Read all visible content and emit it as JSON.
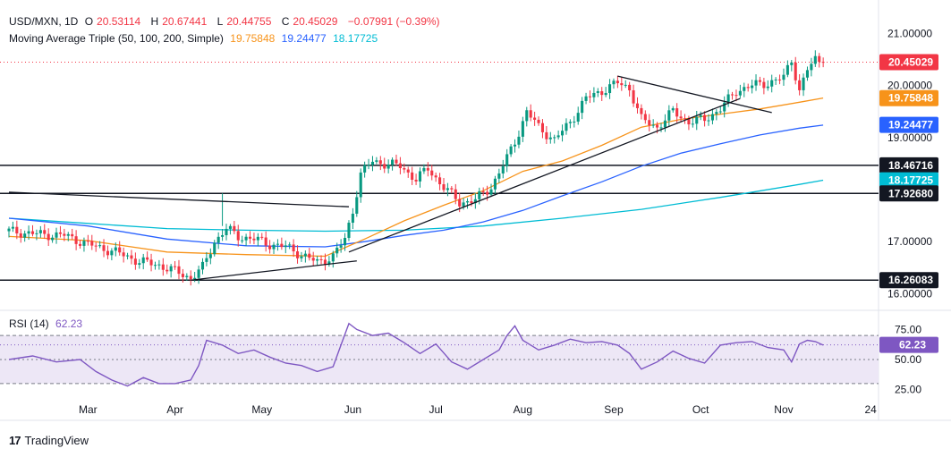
{
  "header": {
    "symbol": "USD/MXN, 1D",
    "o_label": "O",
    "o_value": "20.53114",
    "h_label": "H",
    "h_value": "20.67441",
    "l_label": "L",
    "l_value": "20.44755",
    "c_label": "C",
    "c_value": "20.45029",
    "change": "−0.07991 (−0.39%)",
    "ma_title": "Moving Average Triple (50, 100, 200, Simple)",
    "ma50_value": "19.75848",
    "ma100_value": "19.24477",
    "ma200_value": "18.17725",
    "rsi_title": "RSI (14)",
    "rsi_value": "62.23"
  },
  "colors": {
    "up": "#089981",
    "down": "#f23645",
    "ma50": "#f7931a",
    "ma100": "#2962ff",
    "ma200": "#00bcd4",
    "rsi": "#7e57c2",
    "rsi_band": "#ede7f6"
  },
  "brand": {
    "name": "TradingView",
    "logo": "17"
  },
  "chart_data": {
    "type": "candlestick",
    "price_axis": {
      "ticks": [
        "21.00000",
        "20.00000",
        "19.00000",
        "17.00000",
        "16.00000"
      ],
      "tick_values": [
        21,
        20,
        19,
        17,
        16
      ],
      "range": [
        15.8,
        21.3
      ]
    },
    "time_axis": {
      "labels": [
        "Mar",
        "Apr",
        "May",
        "Jun",
        "Jul",
        "Aug",
        "Sep",
        "Oct",
        "Nov",
        "24"
      ],
      "label_day_index": [
        20,
        42,
        64,
        87,
        108,
        130,
        153,
        175,
        196,
        218
      ],
      "range": [
        0,
        220
      ]
    },
    "price_tags": [
      {
        "label": "20.45029",
        "value": 20.45029,
        "color": "#f23645"
      },
      {
        "label": "19.75848",
        "value": 19.75848,
        "color": "#f7931a"
      },
      {
        "label": "19.24477",
        "value": 19.24477,
        "color": "#2962ff"
      },
      {
        "label": "18.46716",
        "value": 18.46716,
        "color": "#131722"
      },
      {
        "label": "18.17725",
        "value": 18.17725,
        "color": "#00bcd4"
      },
      {
        "label": "17.92680",
        "value": 17.9268,
        "color": "#131722"
      },
      {
        "label": "16.26083",
        "value": 16.26083,
        "color": "#131722"
      }
    ],
    "horizontal_levels": [
      18.46716,
      17.9268,
      16.26083
    ],
    "last_close": 20.45029,
    "trendlines": [
      {
        "from": [
          0,
          17.95
        ],
        "to": [
          86,
          17.67
        ]
      },
      {
        "from": [
          46,
          16.26
        ],
        "to": [
          88,
          16.63
        ]
      },
      {
        "from": [
          86,
          16.8
        ],
        "to": [
          185,
          19.75
        ]
      },
      {
        "from": [
          154,
          20.18
        ],
        "to": [
          193,
          19.48
        ]
      }
    ],
    "price_path": [
      [
        0,
        17.2
      ],
      [
        8,
        17.14
      ],
      [
        14,
        17.12
      ],
      [
        20,
        16.95
      ],
      [
        27,
        16.8
      ],
      [
        33,
        16.62
      ],
      [
        38,
        16.55
      ],
      [
        43,
        16.4
      ],
      [
        46,
        16.3
      ],
      [
        49,
        16.5
      ],
      [
        52,
        17.0
      ],
      [
        55,
        17.25
      ],
      [
        58,
        17.1
      ],
      [
        62,
        17.05
      ],
      [
        66,
        16.95
      ],
      [
        70,
        16.9
      ],
      [
        74,
        16.75
      ],
      [
        78,
        16.6
      ],
      [
        82,
        16.72
      ],
      [
        85,
        17.05
      ],
      [
        87,
        17.6
      ],
      [
        89,
        18.3
      ],
      [
        92,
        18.55
      ],
      [
        95,
        18.5
      ],
      [
        99,
        18.45
      ],
      [
        103,
        18.2
      ],
      [
        106,
        18.4
      ],
      [
        110,
        18.05
      ],
      [
        114,
        17.75
      ],
      [
        118,
        17.8
      ],
      [
        122,
        18.05
      ],
      [
        126,
        18.6
      ],
      [
        129,
        19.1
      ],
      [
        131,
        19.5
      ],
      [
        134,
        19.2
      ],
      [
        138,
        18.95
      ],
      [
        142,
        19.3
      ],
      [
        146,
        19.75
      ],
      [
        150,
        19.9
      ],
      [
        154,
        20.05
      ],
      [
        157,
        19.95
      ],
      [
        160,
        19.35
      ],
      [
        164,
        19.2
      ],
      [
        168,
        19.5
      ],
      [
        172,
        19.3
      ],
      [
        176,
        19.35
      ],
      [
        180,
        19.55
      ],
      [
        184,
        19.9
      ],
      [
        188,
        20.0
      ],
      [
        192,
        20.05
      ],
      [
        196,
        20.15
      ],
      [
        198,
        20.5
      ],
      [
        200,
        19.9
      ],
      [
        202,
        20.3
      ],
      [
        204,
        20.5
      ],
      [
        206,
        20.45
      ]
    ],
    "sma50_path": [
      [
        0,
        17.1
      ],
      [
        20,
        17.02
      ],
      [
        40,
        16.8
      ],
      [
        60,
        16.75
      ],
      [
        80,
        16.72
      ],
      [
        90,
        17.05
      ],
      [
        100,
        17.4
      ],
      [
        110,
        17.7
      ],
      [
        120,
        17.98
      ],
      [
        130,
        18.35
      ],
      [
        140,
        18.55
      ],
      [
        150,
        18.85
      ],
      [
        160,
        19.2
      ],
      [
        170,
        19.35
      ],
      [
        180,
        19.45
      ],
      [
        190,
        19.55
      ],
      [
        200,
        19.68
      ],
      [
        206,
        19.76
      ]
    ],
    "sma100_path": [
      [
        0,
        17.45
      ],
      [
        20,
        17.3
      ],
      [
        40,
        17.05
      ],
      [
        60,
        16.92
      ],
      [
        80,
        16.9
      ],
      [
        90,
        17.0
      ],
      [
        100,
        17.12
      ],
      [
        110,
        17.22
      ],
      [
        120,
        17.38
      ],
      [
        130,
        17.6
      ],
      [
        140,
        17.88
      ],
      [
        150,
        18.15
      ],
      [
        160,
        18.45
      ],
      [
        170,
        18.7
      ],
      [
        180,
        18.88
      ],
      [
        190,
        19.05
      ],
      [
        200,
        19.18
      ],
      [
        206,
        19.24
      ]
    ],
    "sma200_path": [
      [
        0,
        17.45
      ],
      [
        20,
        17.35
      ],
      [
        40,
        17.25
      ],
      [
        60,
        17.22
      ],
      [
        80,
        17.2
      ],
      [
        100,
        17.22
      ],
      [
        120,
        17.3
      ],
      [
        140,
        17.45
      ],
      [
        160,
        17.62
      ],
      [
        180,
        17.85
      ],
      [
        200,
        18.1
      ],
      [
        206,
        18.18
      ]
    ],
    "rsi": {
      "ticks": [
        "75.00",
        "50.00",
        "25.00"
      ],
      "tick_values": [
        75,
        50,
        25
      ],
      "band": [
        30,
        70
      ],
      "midline": 50,
      "range": [
        18,
        85
      ],
      "last": 62.23,
      "path": [
        [
          0,
          50
        ],
        [
          6,
          53
        ],
        [
          12,
          48
        ],
        [
          18,
          50
        ],
        [
          22,
          40
        ],
        [
          26,
          33
        ],
        [
          30,
          28
        ],
        [
          34,
          35
        ],
        [
          38,
          30
        ],
        [
          42,
          30
        ],
        [
          46,
          33
        ],
        [
          48,
          45
        ],
        [
          50,
          66
        ],
        [
          54,
          62
        ],
        [
          58,
          55
        ],
        [
          62,
          58
        ],
        [
          66,
          52
        ],
        [
          70,
          47
        ],
        [
          74,
          45
        ],
        [
          78,
          40
        ],
        [
          82,
          44
        ],
        [
          84,
          62
        ],
        [
          86,
          80
        ],
        [
          88,
          75
        ],
        [
          92,
          70
        ],
        [
          96,
          72
        ],
        [
          100,
          64
        ],
        [
          104,
          55
        ],
        [
          108,
          63
        ],
        [
          112,
          48
        ],
        [
          116,
          42
        ],
        [
          120,
          50
        ],
        [
          124,
          58
        ],
        [
          126,
          70
        ],
        [
          128,
          78
        ],
        [
          130,
          66
        ],
        [
          134,
          58
        ],
        [
          138,
          62
        ],
        [
          142,
          67
        ],
        [
          146,
          64
        ],
        [
          150,
          65
        ],
        [
          154,
          62
        ],
        [
          157,
          55
        ],
        [
          160,
          42
        ],
        [
          164,
          48
        ],
        [
          168,
          57
        ],
        [
          172,
          51
        ],
        [
          176,
          47
        ],
        [
          180,
          62
        ],
        [
          184,
          64
        ],
        [
          188,
          65
        ],
        [
          192,
          60
        ],
        [
          196,
          58
        ],
        [
          198,
          48
        ],
        [
          200,
          63
        ],
        [
          202,
          66
        ],
        [
          204,
          65
        ],
        [
          206,
          62
        ]
      ]
    }
  }
}
